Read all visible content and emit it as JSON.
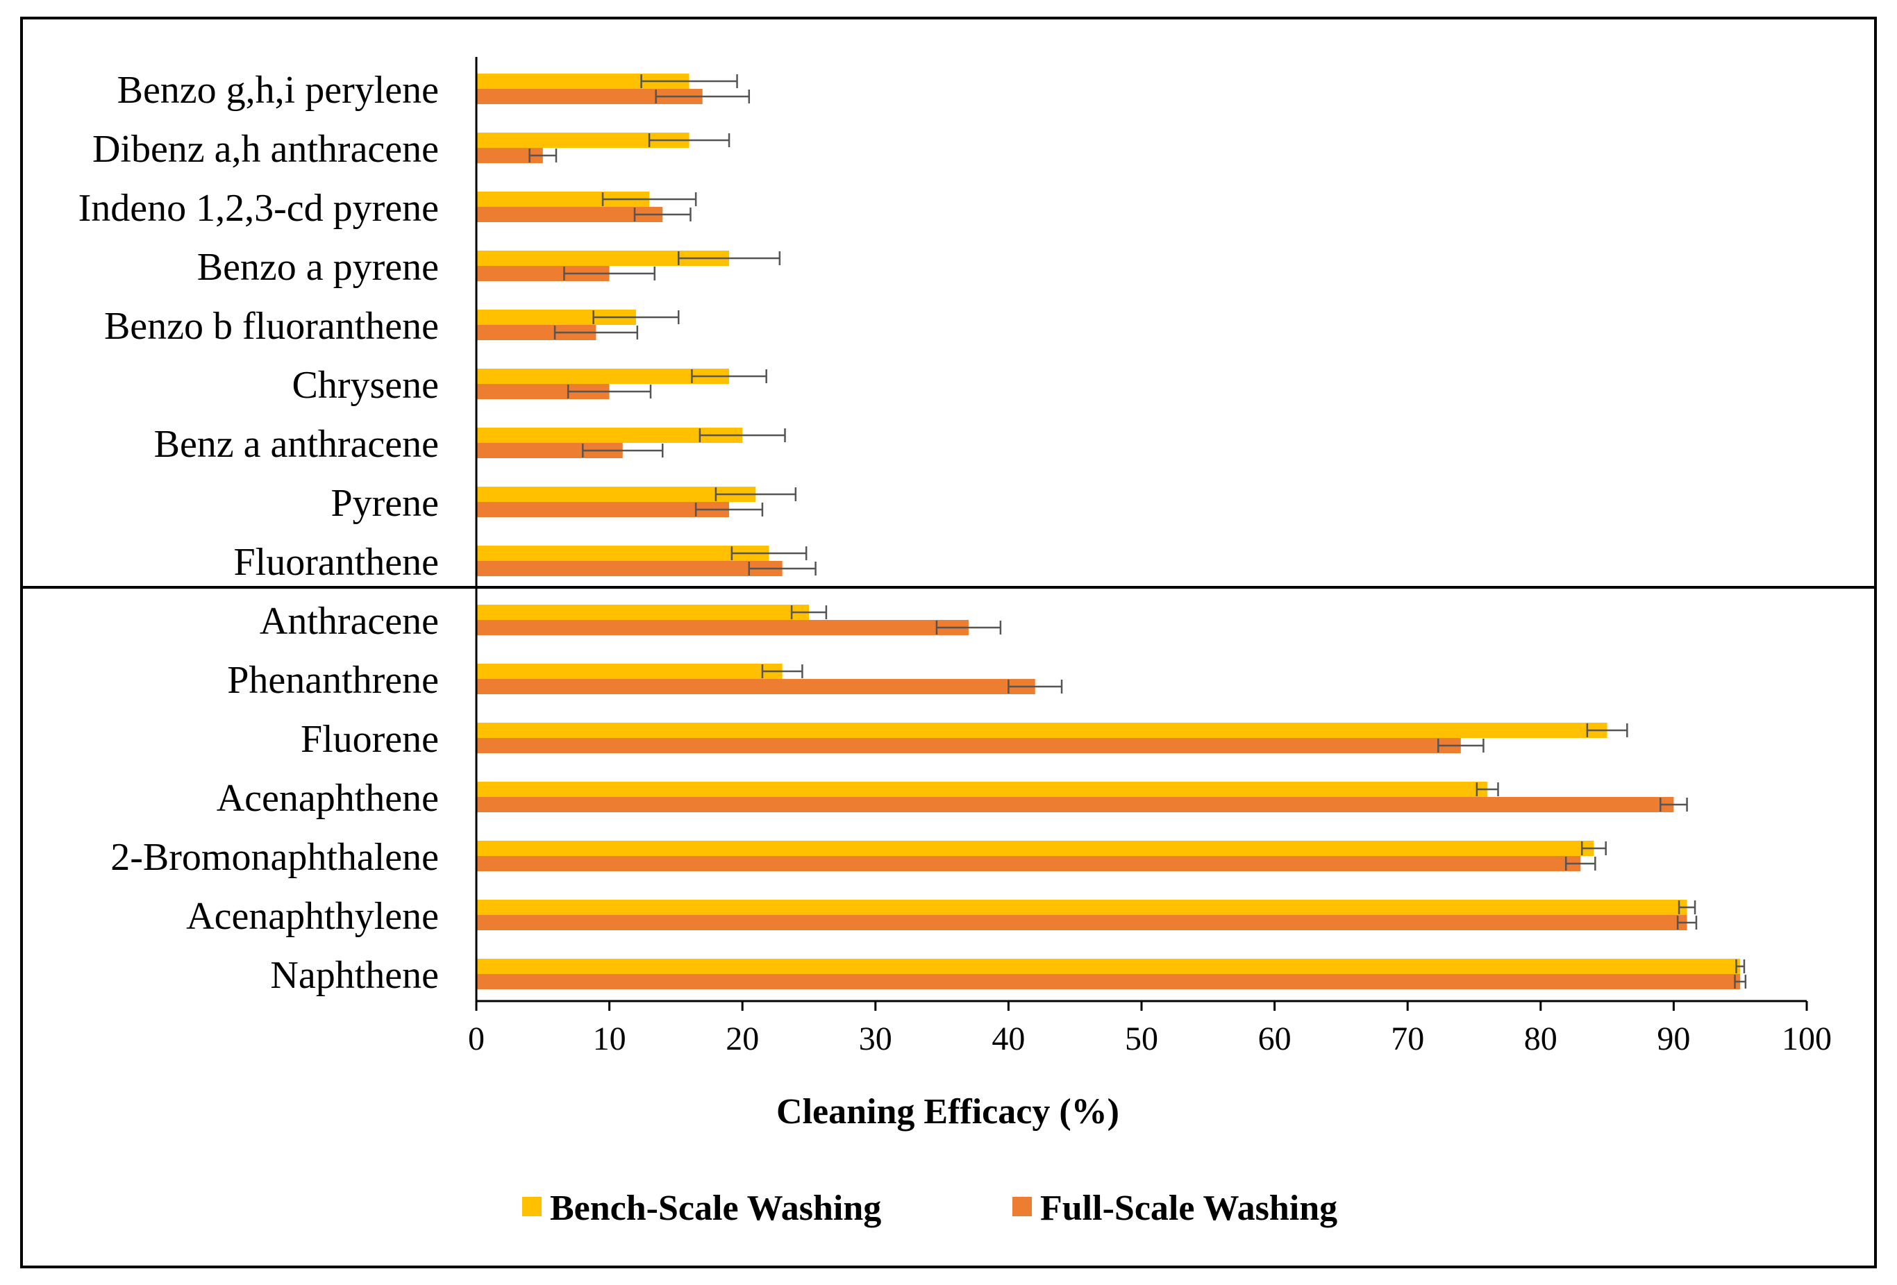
{
  "chart_data": {
    "type": "bar",
    "orientation": "horizontal",
    "xlabel": "Cleaning Efficacy (%)",
    "xlim": [
      0,
      100
    ],
    "xticks": [
      "0",
      "10",
      "20",
      "30",
      "40",
      "50",
      "60",
      "70",
      "80",
      "90",
      "100"
    ],
    "legend_position": "bottom",
    "categories": [
      "Benzo g,h,i perylene",
      "Dibenz a,h anthracene",
      "Indeno 1,2,3-cd pyrene",
      "Benzo a pyrene",
      "Benzo b fluoranthene",
      "Chrysene",
      "Benz a anthracene",
      "Pyrene",
      "Fluoranthene",
      "Anthracene",
      "Phenanthrene",
      "Fluorene",
      "Acenaphthene",
      "2-Bromonaphthalene",
      "Acenaphthylene",
      "Naphthene"
    ],
    "series": [
      {
        "name": "Bench-Scale Washing",
        "color": "#FFC000",
        "values": [
          16,
          16,
          13,
          19,
          12,
          19,
          20,
          21,
          22,
          25,
          23,
          85,
          76,
          84,
          91,
          95
        ],
        "errors": [
          3.6,
          3,
          3.5,
          3.8,
          3.2,
          2.8,
          3.2,
          3,
          2.8,
          1.3,
          1.5,
          1.5,
          0.8,
          0.9,
          0.6,
          0.3
        ]
      },
      {
        "name": "Full-Scale Washing",
        "color": "#ED7D31",
        "values": [
          17,
          5,
          14,
          10,
          9,
          10,
          11,
          19,
          23,
          37,
          42,
          74,
          90,
          83,
          91,
          95
        ],
        "errors": [
          3.5,
          1,
          2.1,
          3.4,
          3.1,
          3.1,
          3,
          2.5,
          2.5,
          2.4,
          2,
          1.7,
          1,
          1.1,
          0.7,
          0.4
        ]
      }
    ]
  }
}
